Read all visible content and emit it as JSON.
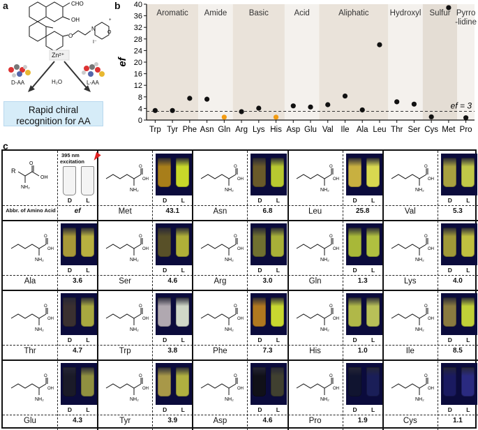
{
  "panel_a": {
    "letter": "a",
    "cho_label": "CHO",
    "oh_label": "OH",
    "zn_label": "Zn²⁺",
    "water_label": "H₂O",
    "d_aa_label": "D-AA",
    "l_aa_label": "L-AA",
    "box_line1": "Rapid chiral",
    "box_line2": "recognition for AA"
  },
  "panel_b": {
    "letter": "b",
    "ef_line_label": "ef = 3",
    "colors": {
      "dot": "#111111",
      "highlight_dot": "#f39c12"
    }
  },
  "chart_data": {
    "type": "scatter",
    "ylabel": "ef",
    "xlabel": "",
    "ylim": [
      0,
      40
    ],
    "yticks": [
      0,
      4,
      8,
      12,
      16,
      20,
      24,
      28,
      32,
      36,
      40
    ],
    "categories": [
      "Trp",
      "Tyr",
      "Phe",
      "Asn",
      "Gln",
      "Arg",
      "Lys",
      "His",
      "Asp",
      "Glu",
      "Val",
      "Ile",
      "Ala",
      "Leu",
      "Thr",
      "Ser",
      "Cys",
      "Met",
      "Pro"
    ],
    "values": [
      3.3,
      3.3,
      7.5,
      7.2,
      1.0,
      2.9,
      4.1,
      1.0,
      4.9,
      4.5,
      5.3,
      8.3,
      3.5,
      26.0,
      6.3,
      5.5,
      1.1,
      38.8,
      0.8
    ],
    "highlighted": [
      "Gln",
      "His"
    ],
    "threshold": 3,
    "groups": [
      {
        "name": "Aromatic",
        "start": 0,
        "end": 2,
        "shade": "#eae3da"
      },
      {
        "name": "Amide",
        "start": 3,
        "end": 4,
        "shade": "#f4f1ed"
      },
      {
        "name": "Basic",
        "start": 5,
        "end": 7,
        "shade": "#eae3da"
      },
      {
        "name": "Acid",
        "start": 8,
        "end": 9,
        "shade": "#f4f1ed"
      },
      {
        "name": "Aliphatic",
        "start": 10,
        "end": 13,
        "shade": "#eae3da"
      },
      {
        "name": "Hydroxyl",
        "start": 14,
        "end": 15,
        "shade": "#f4f1ed"
      },
      {
        "name": "Sulfur",
        "start": 16,
        "end": 17,
        "shade": "#e4ddd4"
      },
      {
        "name": "Pyrro\n-lidine",
        "start": 18,
        "end": 18,
        "shade": "#f4f1ed"
      }
    ]
  },
  "panel_c": {
    "letter": "c",
    "header_abbr": "Abbr. of Amino Acid",
    "header_ef": "ef",
    "excitation_line1": "395 nm",
    "excitation_line2": "excitation",
    "d_label": "D",
    "l_label": "L",
    "r_label": "R",
    "cells": [
      {
        "name": "Met",
        "ef": "43.1",
        "d": "#a87e1a",
        "l": "#c8d82a"
      },
      {
        "name": "Asn",
        "ef": "6.8",
        "d": "#6a5a2a",
        "l": "#b8c830"
      },
      {
        "name": "Leu",
        "ef": "25.8",
        "d": "#c8b040",
        "l": "#d8d850"
      },
      {
        "name": "Val",
        "ef": "5.3",
        "d": "#a8a040",
        "l": "#c0c848"
      },
      {
        "name": "Ala",
        "ef": "3.6",
        "d": "#a89838",
        "l": "#b8b040"
      },
      {
        "name": "Ser",
        "ef": "4.6",
        "d": "#585028",
        "l": "#b0b038"
      },
      {
        "name": "Arg",
        "ef": "3.0",
        "d": "#707030",
        "l": "#a8b038"
      },
      {
        "name": "Gln",
        "ef": "1.3",
        "d": "#a8b838",
        "l": "#b0c040"
      },
      {
        "name": "Lys",
        "ef": "4.0",
        "d": "#a09838",
        "l": "#c0c040"
      },
      {
        "name": "Thr",
        "ef": "4.7",
        "d": "#3a3030",
        "l": "#a8a840"
      },
      {
        "name": "Trp",
        "ef": "3.8",
        "d": "#b0a8b0",
        "l": "#d0d8c8"
      },
      {
        "name": "Phe",
        "ef": "7.3",
        "d": "#b07820",
        "l": "#c8d830"
      },
      {
        "name": "His",
        "ef": "1.0",
        "d": "#b0b848",
        "l": "#b8c058"
      },
      {
        "name": "Ile",
        "ef": "8.5",
        "d": "#8a7a40",
        "l": "#c0d038"
      },
      {
        "name": "Glu",
        "ef": "4.3",
        "d": "#1a1a28",
        "l": "#909040"
      },
      {
        "name": "Tyr",
        "ef": "3.9",
        "d": "#a89848",
        "l": "#b0b040"
      },
      {
        "name": "Asp",
        "ef": "4.6",
        "d": "#101018",
        "l": "#404030"
      },
      {
        "name": "Pro",
        "ef": "1.9",
        "d": "#101430",
        "l": "#1a1e58"
      },
      {
        "name": "Cys",
        "ef": "1.1",
        "d": "#1a1a60",
        "l": "#2a2a80"
      }
    ]
  }
}
